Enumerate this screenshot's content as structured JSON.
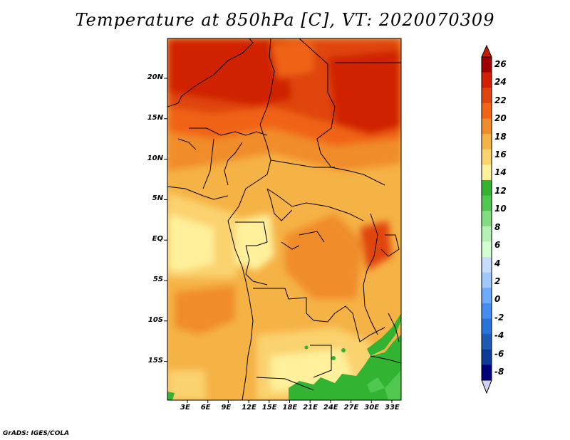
{
  "title": "Temperature at 850hPa [C], VT: 2020070309",
  "credit": "GrADS: IGES/COLA",
  "lat_ticks": [
    "20N",
    "15N",
    "10N",
    "5N",
    "EQ",
    "5S",
    "10S",
    "15S"
  ],
  "lon_ticks": [
    "3E",
    "6E",
    "9E",
    "12E",
    "15E",
    "18E",
    "21E",
    "24E",
    "27E",
    "30E",
    "33E"
  ],
  "colorbar": {
    "labels": [
      "26",
      "24",
      "22",
      "20",
      "18",
      "16",
      "14",
      "12",
      "10",
      "8",
      "6",
      "4",
      "2",
      "0",
      "-2",
      "-4",
      "-6",
      "-8"
    ],
    "colors": [
      "#a00000",
      "#d02000",
      "#e04510",
      "#f06414",
      "#f08c2a",
      "#f5b245",
      "#fad26e",
      "#fff09b",
      "#32b432",
      "#50c850",
      "#82dc82",
      "#b4f0b4",
      "#d2ffd2",
      "#c8dcff",
      "#a0c8ff",
      "#6eaaff",
      "#468cf0",
      "#2872dc",
      "#1e5ab4",
      "#0a3c96",
      "#00007d"
    ]
  }
}
